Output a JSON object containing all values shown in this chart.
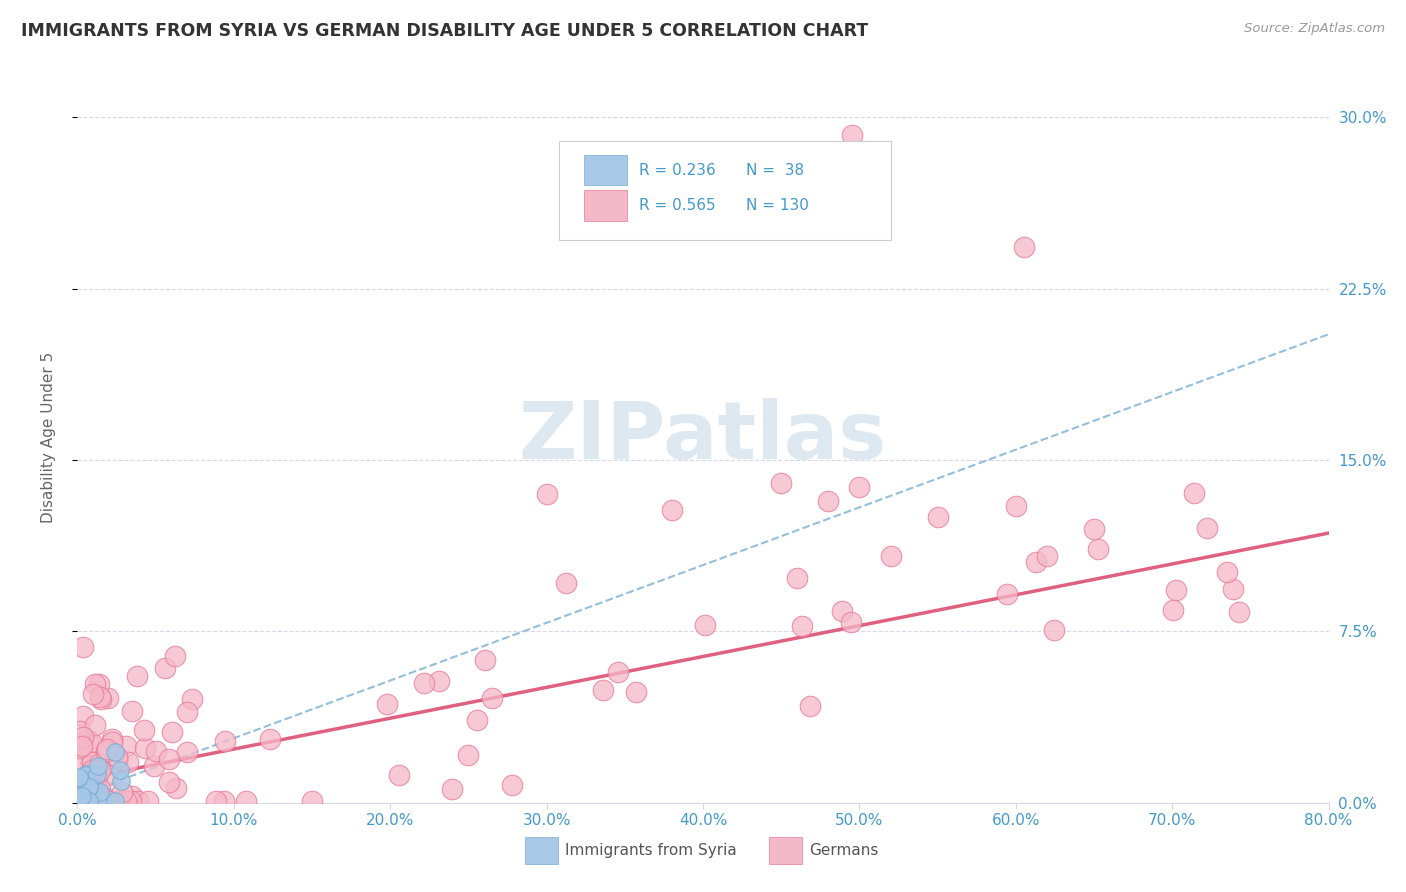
{
  "title": "IMMIGRANTS FROM SYRIA VS GERMAN DISABILITY AGE UNDER 5 CORRELATION CHART",
  "source": "Source: ZipAtlas.com",
  "ylabel": "Disability Age Under 5",
  "ytick_vals": [
    0.0,
    0.075,
    0.15,
    0.225,
    0.3
  ],
  "blue_color": "#a8c8e8",
  "blue_edge_color": "#7aadd0",
  "pink_color": "#f5b8c8",
  "pink_edge_color": "#e87898",
  "trend_blue_color": "#88b8d8",
  "trend_pink_color": "#e06080",
  "watermark": "ZIPatlas",
  "xlim": [
    0.0,
    0.8
  ],
  "ylim": [
    0.0,
    0.32
  ],
  "blue_trend_x": [
    0.0,
    0.8
  ],
  "blue_trend_y": [
    0.003,
    0.205
  ],
  "pink_trend_x": [
    0.0,
    0.8
  ],
  "pink_trend_y": [
    0.01,
    0.118
  ],
  "background_color": "#ffffff",
  "grid_color": "#d8d8e8",
  "tick_color": "#4499cc",
  "title_color": "#333333",
  "source_color": "#999999",
  "ylabel_color": "#666666"
}
